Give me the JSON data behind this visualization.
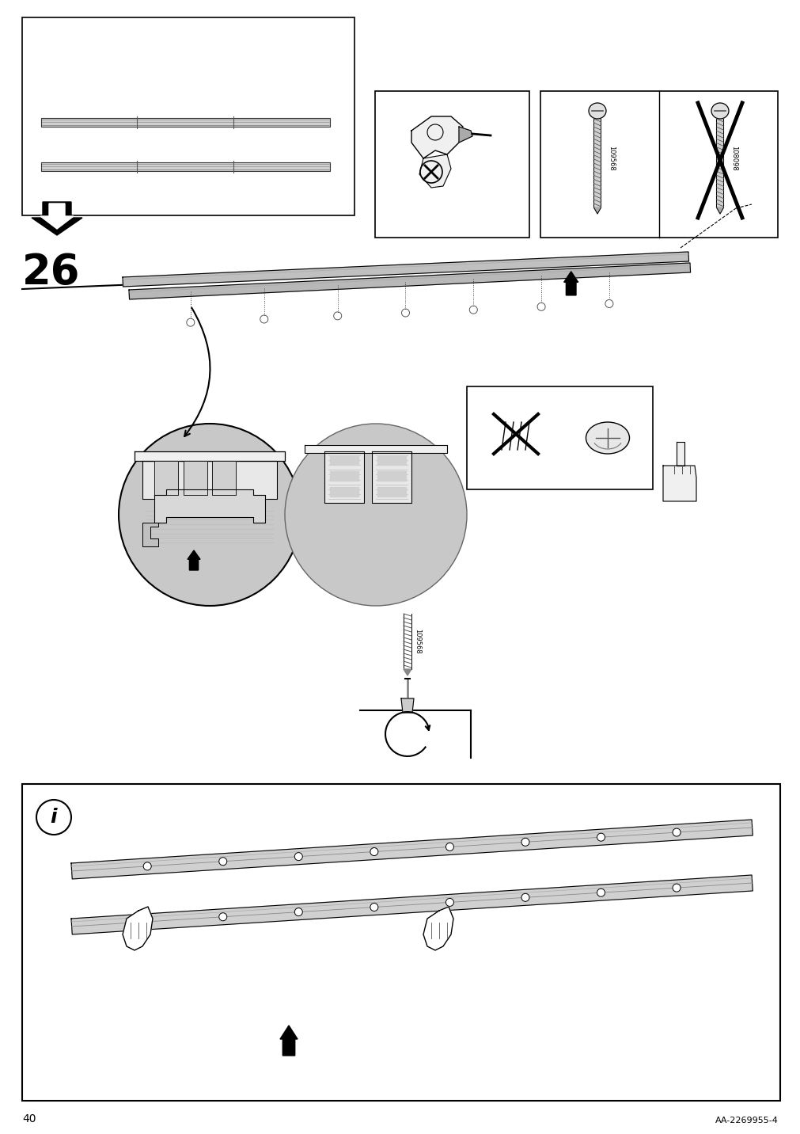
{
  "page_number": "40",
  "reference_code": "AA-2269955-4",
  "step_number": "26",
  "screw_code_1": "109568",
  "screw_code_2": "108098",
  "background_color": "#ffffff",
  "line_color": "#000000",
  "gray_fill": "#c8c8c8",
  "light_gray": "#e8e8e8"
}
